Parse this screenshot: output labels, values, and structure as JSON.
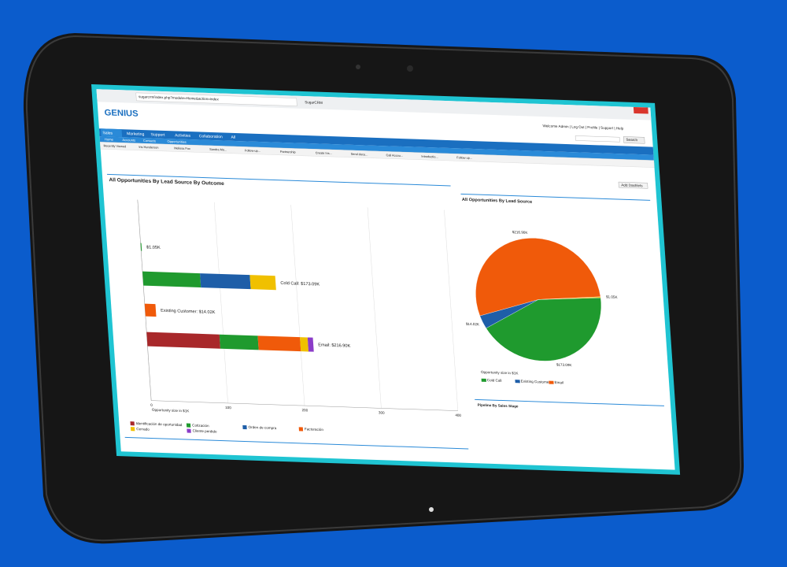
{
  "browser": {
    "url": "sugarcrm/index.php?module=Home&action=index",
    "tab": "SugarCRM"
  },
  "header": {
    "logo": "GENIUS",
    "user_links": "Welcome Admin | Log Out | Profile | Support | Help",
    "search_button": "Search"
  },
  "tabs": [
    "Sales",
    "Marketing",
    "Support",
    "Activities",
    "Collaboration",
    "All"
  ],
  "subtabs": [
    "Home",
    "Accounts",
    "Contacts",
    "Opportunities"
  ],
  "shortcuts": [
    "Recently Viewed",
    "Iris Henderson",
    "Melissa Fox",
    "Sandra Mo...",
    "Follow-up...",
    "Partnership",
    "Create Ins...",
    "Send docu...",
    "Call Accou...",
    "Introductio...",
    "Follow up..."
  ],
  "add_dashlets": "Add Dashlets",
  "bar_chart": {
    "title": "All Opportunities By Lead Source By Outcome",
    "bar_labels": [
      "$1.05K",
      "Cold Call: $173.09K",
      "Existing Customer: $14.02K",
      "Email: $216.90K"
    ],
    "xlim": [
      0,
      400
    ],
    "xticks": [
      0,
      100,
      200,
      300,
      400
    ],
    "axis_label": "Opportunity size in $1K",
    "series": [
      {
        "name": "Identificación de oportunidad",
        "color": "#a8282a",
        "values": [
          0,
          0,
          0,
          95
        ]
      },
      {
        "name": "Cotización",
        "color": "#1f9a2e",
        "values": [
          1.05,
          75,
          0,
          50
        ]
      },
      {
        "name": "Orden de compra",
        "color": "#1e5ea8",
        "values": [
          0,
          65,
          0,
          0
        ]
      },
      {
        "name": "Facturación",
        "color": "#f05a0a",
        "values": [
          0,
          0,
          14.02,
          55
        ]
      },
      {
        "name": "Cerrado",
        "color": "#f0c000",
        "values": [
          0,
          33.09,
          0,
          10
        ]
      },
      {
        "name": "Cliente perdido",
        "color": "#8b3cc8",
        "values": [
          0,
          0,
          0,
          6.9
        ]
      }
    ]
  },
  "pie_chart": {
    "title": "All Opportunities By Lead Source",
    "categories": [
      "Cold Call",
      "Existing Customer",
      "Email",
      null
    ],
    "values": [
      173.09,
      14.02,
      216.9,
      1.05
    ],
    "value_labels": [
      "$173.09K",
      "$14.02K",
      "$216.90K",
      "$1.05K"
    ],
    "colors": [
      "#1f9a2e",
      "#1e5ea8",
      "#f05a0a",
      "#f0c000"
    ],
    "caption": "Opportunity size in $1K"
  },
  "bottom_dashlet": {
    "title": "Pipeline By Sales Stage"
  }
}
